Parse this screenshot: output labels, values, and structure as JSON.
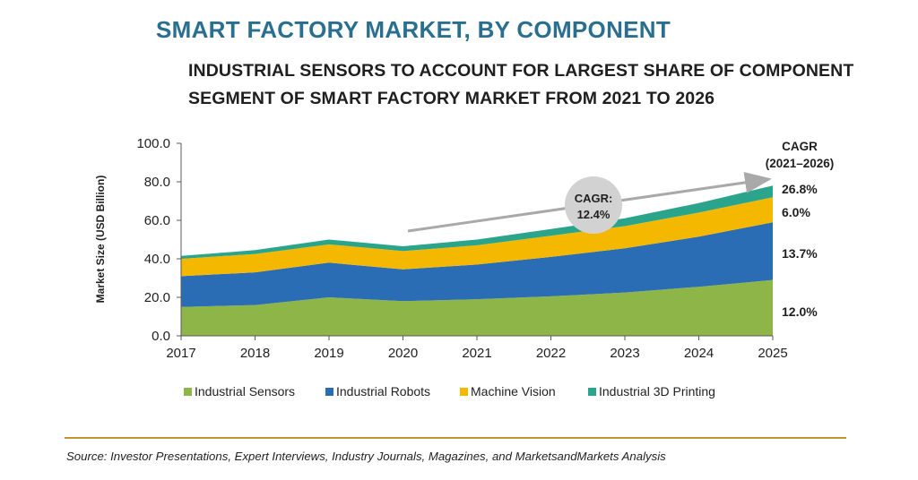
{
  "header": {
    "title": "SMART FACTORY MARKET, BY COMPONENT",
    "subtitle_line1": "INDUSTRIAL SENSORS TO ACCOUNT FOR LARGEST SHARE OF COMPONENT",
    "subtitle_line2": "SEGMENT OF SMART FACTORY MARKET FROM 2021 TO 2026"
  },
  "chart_data": {
    "type": "area",
    "stacked": true,
    "x": [
      "2017",
      "2018",
      "2019",
      "2020",
      "2021",
      "2022",
      "2023",
      "2024",
      "2025"
    ],
    "ylabel": "Market Size (USD Billion)",
    "ylim": [
      0,
      100
    ],
    "yticks": [
      "0.0",
      "20.0",
      "40.0",
      "60.0",
      "80.0",
      "100.0"
    ],
    "grid": false,
    "legend_position": "bottom",
    "series": [
      {
        "name": "Industrial Sensors",
        "color": "#8db547",
        "values": [
          15,
          16,
          20,
          18,
          19,
          20.5,
          22.5,
          25.5,
          29
        ],
        "cagr": "12.0%"
      },
      {
        "name": "Industrial Robots",
        "color": "#2a6db5",
        "values": [
          16,
          17,
          18,
          16.5,
          18,
          20.5,
          23,
          26,
          30
        ],
        "cagr": "13.7%"
      },
      {
        "name": "Machine Vision",
        "color": "#f5b800",
        "values": [
          9,
          9.5,
          9.5,
          9.5,
          10,
          11,
          11.5,
          12.5,
          13
        ],
        "cagr": "6.0%"
      },
      {
        "name": "Industrial 3D Printing",
        "color": "#2aa58c",
        "values": [
          1.5,
          2,
          2.5,
          2.5,
          3,
          3.5,
          4,
          5,
          6
        ],
        "cagr": "26.8%"
      }
    ],
    "cagr_header": [
      "CAGR",
      "(2021–2026)"
    ],
    "annotation": {
      "line1": "CAGR:",
      "line2": "12.4%"
    }
  },
  "footer": {
    "source": "Source: Investor Presentations, Expert Interviews, Industry Journals, Magazines, and MarketsandMarkets Analysis"
  }
}
